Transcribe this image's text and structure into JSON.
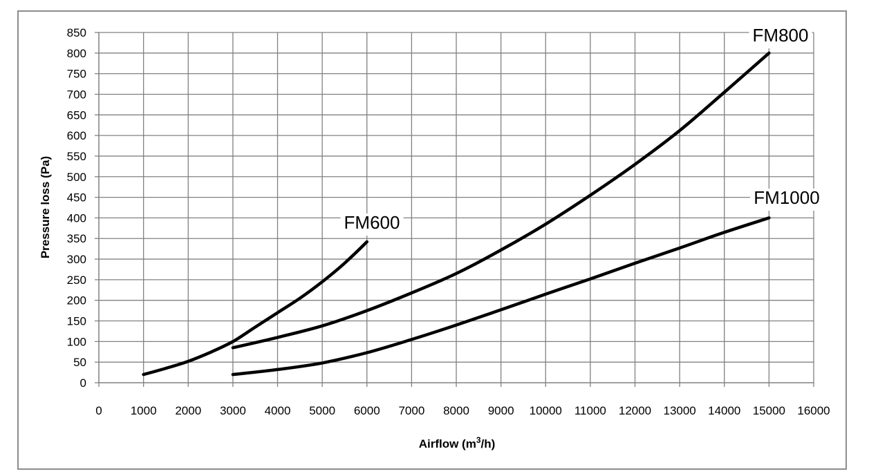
{
  "chart_data": {
    "type": "line",
    "title": "",
    "xlabel": "Airflow (m",
    "xlabel_sup": "3",
    "xlabel_end": "/h)",
    "ylabel": "Pressure loss (Pa)",
    "xlim": [
      0,
      16000
    ],
    "ylim": [
      0,
      850
    ],
    "x_ticks": [
      0,
      1000,
      2000,
      3000,
      4000,
      5000,
      6000,
      7000,
      8000,
      9000,
      10000,
      11000,
      12000,
      13000,
      14000,
      15000,
      16000
    ],
    "y_ticks": [
      0,
      50,
      100,
      150,
      200,
      250,
      300,
      350,
      400,
      450,
      500,
      550,
      600,
      650,
      700,
      750,
      800,
      850
    ],
    "grid": true,
    "legend": "none",
    "series_color": "#000000",
    "series": [
      {
        "name": "FM600",
        "x": [
          1000,
          1500,
          2000,
          2500,
          3000,
          3500,
          4000,
          4500,
          5000,
          5500,
          6000
        ],
        "y": [
          20,
          35,
          52,
          74,
          100,
          135,
          170,
          205,
          245,
          290,
          342
        ]
      },
      {
        "name": "FM800",
        "x": [
          3000,
          4000,
          5000,
          6000,
          7000,
          8000,
          9000,
          10000,
          11000,
          12000,
          13000,
          14000,
          15000
        ],
        "y": [
          85,
          110,
          138,
          175,
          218,
          265,
          322,
          385,
          455,
          530,
          612,
          705,
          800
        ]
      },
      {
        "name": "FM1000",
        "x": [
          3000,
          4000,
          5000,
          6000,
          7000,
          8000,
          9000,
          10000,
          11000,
          12000,
          13000,
          14000,
          15000
        ],
        "y": [
          20,
          32,
          48,
          73,
          105,
          140,
          177,
          215,
          252,
          290,
          327,
          365,
          400
        ]
      }
    ]
  }
}
